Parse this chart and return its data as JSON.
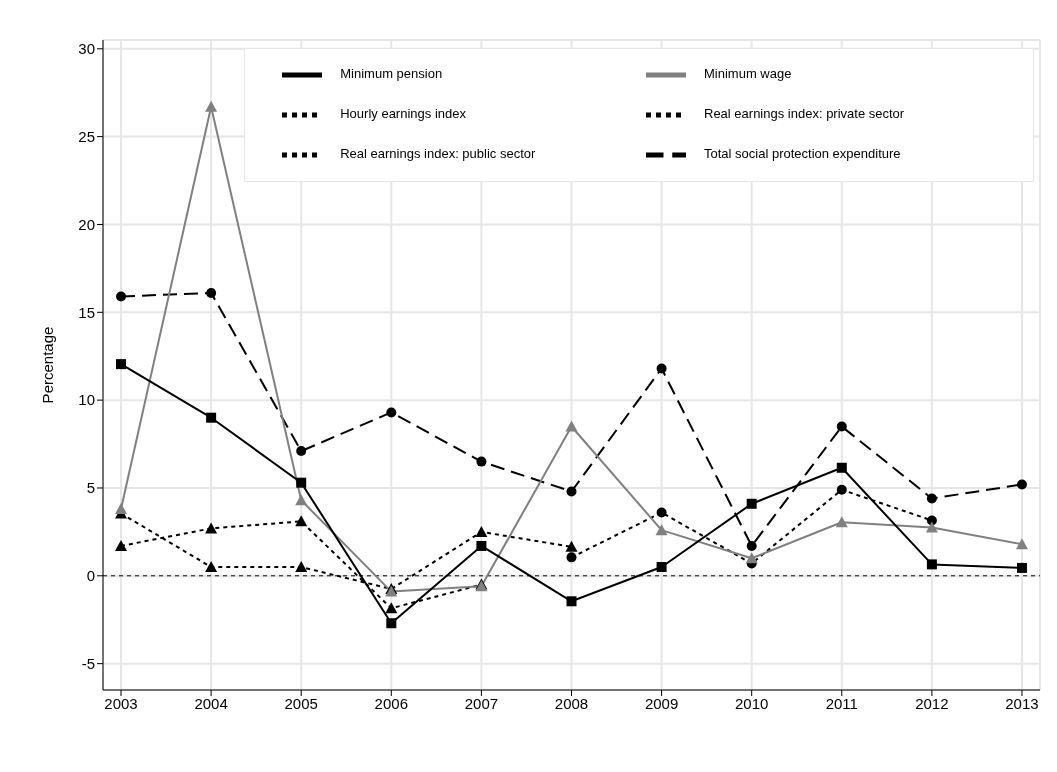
{
  "chart_data": {
    "type": "line",
    "ylabel": "Percentage",
    "x": [
      2003,
      2004,
      2005,
      2006,
      2007,
      2008,
      2009,
      2010,
      2011,
      2012,
      2013
    ],
    "xlim": [
      2002.8,
      2013.2
    ],
    "xticks": [
      2003,
      2004,
      2005,
      2006,
      2007,
      2008,
      2009,
      2010,
      2011,
      2012,
      2013
    ],
    "ylim": [
      -6.5,
      30.5
    ],
    "yticks": [
      -5,
      0,
      5,
      10,
      15,
      20,
      25,
      30
    ],
    "grid": true,
    "legend": "top right",
    "ref_lines": [
      {
        "axis": "y",
        "value": 0,
        "color": "#000000",
        "line_style": "dotted"
      }
    ],
    "series": [
      {
        "name": "Minimum pension",
        "color": "#000000",
        "marker": "square",
        "line_style": "solid",
        "values": [
          12.05,
          9.0,
          5.3,
          -2.7,
          1.7,
          -1.45,
          0.5,
          4.1,
          6.15,
          0.65,
          0.45
        ]
      },
      {
        "name": "Minimum wage",
        "color": "#808080",
        "marker": "triangle",
        "line_style": "solid",
        "values": [
          3.8,
          26.7,
          4.3,
          -0.9,
          -0.6,
          8.5,
          2.6,
          1.0,
          3.05,
          2.75,
          1.8
        ]
      },
      {
        "name": "Hourly earnings index",
        "color": "#000000",
        "marker": "circle",
        "line_style": "dotted",
        "values": [
          null,
          null,
          null,
          null,
          null,
          1.05,
          3.6,
          0.7,
          4.9,
          3.15,
          null
        ]
      },
      {
        "name": "Real earnings index: private sector",
        "color": "#000000",
        "marker": "triangle",
        "line_style": "dotted",
        "values": [
          3.55,
          0.5,
          0.5,
          -0.75,
          2.5,
          1.65,
          null,
          null,
          null,
          null,
          null
        ]
      },
      {
        "name": "Real earnings index: public sector",
        "color": "#000000",
        "marker": "triangle",
        "line_style": "dotted",
        "values": [
          1.7,
          2.7,
          3.1,
          -1.85,
          -0.5,
          null,
          null,
          null,
          null,
          null,
          null
        ]
      },
      {
        "name": "Total social protection expenditure",
        "color": "#000000",
        "marker": "circle",
        "line_style": "dashed",
        "values": [
          15.9,
          16.1,
          7.1,
          9.3,
          6.5,
          4.8,
          11.8,
          1.7,
          8.5,
          4.4,
          5.2
        ]
      }
    ]
  }
}
